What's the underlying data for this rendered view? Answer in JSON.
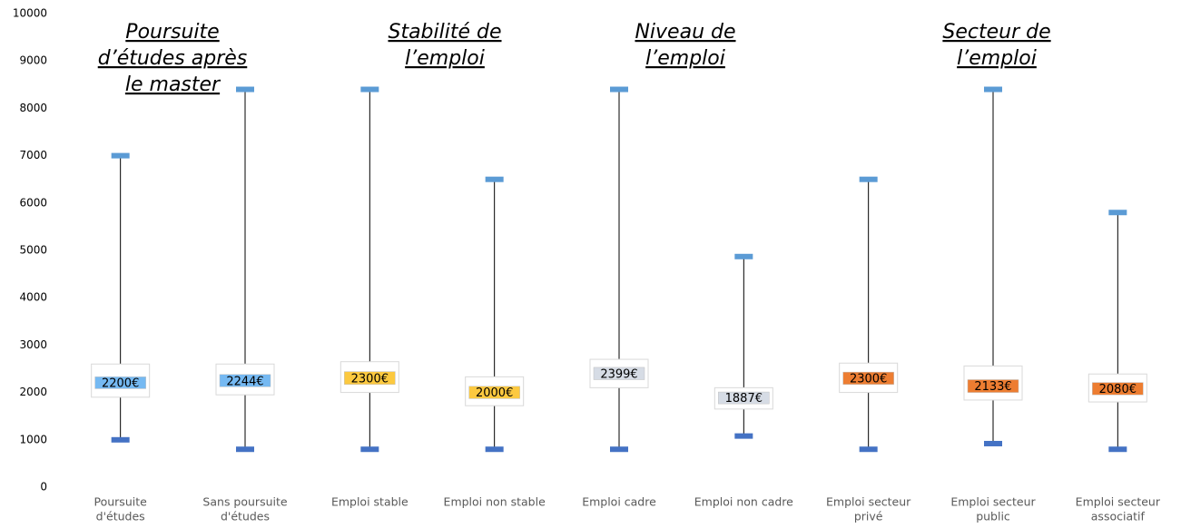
{
  "chart_data": {
    "type": "box",
    "categories": [
      [
        "Poursuite",
        "d'études"
      ],
      [
        "Sans poursuite",
        "d'études"
      ],
      [
        "Emploi stable"
      ],
      [
        "Emploi non stable"
      ],
      [
        "Emploi cadre"
      ],
      [
        "Emploi non cadre"
      ],
      [
        "Emploi secteur",
        "privé"
      ],
      [
        "Emploi secteur",
        "public"
      ],
      [
        "Emploi secteur",
        "associatif"
      ]
    ],
    "max": [
      7000,
      8400,
      8400,
      6500,
      8400,
      4870,
      6500,
      8400,
      5800
    ],
    "min": [
      1000,
      800,
      800,
      800,
      800,
      1080,
      800,
      920,
      800
    ],
    "q1": [
      1900,
      1950,
      2000,
      1720,
      2100,
      1650,
      2000,
      1840,
      1800
    ],
    "q3": [
      2600,
      2600,
      2650,
      2330,
      2700,
      2100,
      2620,
      2560,
      2390
    ],
    "band_low": [
      2080,
      2120,
      2170,
      1870,
      2270,
      1760,
      2170,
      2000,
      1950
    ],
    "band_high": [
      2330,
      2380,
      2440,
      2130,
      2530,
      2010,
      2430,
      2270,
      2210
    ],
    "median": [
      2200,
      2244,
      2300,
      2000,
      2399,
      1887,
      2300,
      2133,
      2080
    ],
    "value_labels": [
      "2200€",
      "2244€",
      "2300€",
      "2000€",
      "2399€",
      "1887€",
      "2300€",
      "2133€",
      "2080€"
    ],
    "colors": [
      "#75b9f2",
      "#75b9f2",
      "#fcc93f",
      "#fcc93f",
      "#d6dce5",
      "#d6dce5",
      "#ed7d31",
      "#ed7d31",
      "#ed7d31"
    ],
    "max_cap_color": "#5b9bd5",
    "min_cap_color": "#4472c4",
    "annotations": [
      [
        "Poursuite",
        "d’études après",
        "le master"
      ],
      [
        "Stabilité de",
        "l’emploi"
      ],
      [
        "Niveau de",
        "l’emploi"
      ],
      [
        "Secteur de",
        "l’emploi"
      ]
    ],
    "ylim": [
      0,
      10000
    ],
    "yticks": [
      0,
      1000,
      2000,
      3000,
      4000,
      5000,
      6000,
      7000,
      8000,
      9000,
      10000
    ]
  }
}
